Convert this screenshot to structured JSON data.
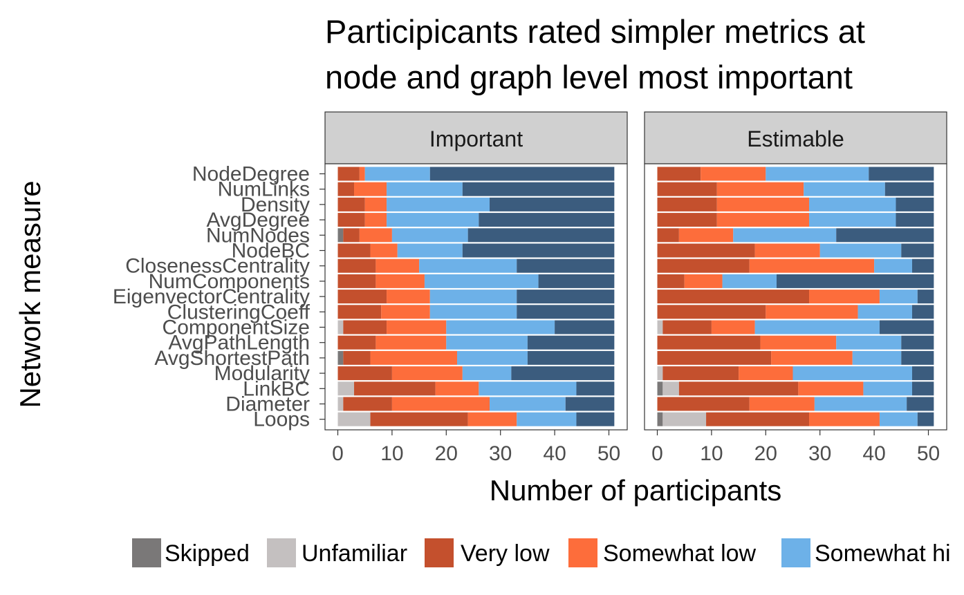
{
  "chart_data": {
    "type": "bar",
    "orientation": "horizontal",
    "stacked": true,
    "title": [
      "Participicants rated simpler metrics at",
      "node and graph level most important"
    ],
    "xlabel": "Number of participants",
    "ylabel": "Network measure",
    "xlim": [
      0,
      51
    ],
    "xticks": [
      0,
      10,
      20,
      30,
      40,
      50
    ],
    "grid": false,
    "legend_position": "bottom",
    "facets": [
      "Important",
      "Estimable"
    ],
    "categories": [
      "NodeDegree",
      "NumLinks",
      "Density",
      "AvgDegree",
      "NumNodes",
      "NodeBC",
      "ClosenessCentrality",
      "NumComponents",
      "EigenvectorCentrality",
      "ClusteringCoeff",
      "ComponentSize",
      "AvgPathLength",
      "AvgShortestPath",
      "Modularity",
      "LinkBC",
      "Diameter",
      "Loops"
    ],
    "series": [
      {
        "name": "Skipped",
        "color": "#7a7878"
      },
      {
        "name": "Unfamiliar",
        "color": "#c4c0c0"
      },
      {
        "name": "Very low",
        "color": "#c4502d"
      },
      {
        "name": "Somewhat low",
        "color": "#fd6d3b"
      },
      {
        "name": "Somewhat hi",
        "color": "#6db1e8"
      },
      {
        "name": "",
        "color": "#3b5c7e"
      }
    ],
    "values": {
      "Important": [
        [
          0,
          0,
          4,
          1,
          12,
          34
        ],
        [
          0,
          0,
          3,
          6,
          14,
          28
        ],
        [
          0,
          0,
          5,
          4,
          19,
          23
        ],
        [
          0,
          0,
          5,
          4,
          17,
          25
        ],
        [
          1,
          0,
          3,
          6,
          14,
          27
        ],
        [
          0,
          0,
          6,
          5,
          12,
          28
        ],
        [
          0,
          0,
          7,
          8,
          18,
          18
        ],
        [
          0,
          0,
          7,
          9,
          21,
          14
        ],
        [
          0,
          0,
          9,
          8,
          16,
          18
        ],
        [
          0,
          0,
          8,
          9,
          16,
          18
        ],
        [
          0,
          1,
          8,
          11,
          20,
          11
        ],
        [
          0,
          0,
          7,
          13,
          15,
          16
        ],
        [
          1,
          0,
          5,
          16,
          13,
          16
        ],
        [
          0,
          0,
          10,
          13,
          9,
          19
        ],
        [
          0,
          3,
          15,
          8,
          18,
          7
        ],
        [
          0,
          1,
          9,
          18,
          14,
          9
        ],
        [
          0,
          6,
          18,
          9,
          11,
          7
        ]
      ],
      "Estimable": [
        [
          0,
          0,
          8,
          12,
          19,
          12
        ],
        [
          0,
          0,
          11,
          16,
          15,
          9
        ],
        [
          0,
          0,
          11,
          17,
          16,
          7
        ],
        [
          0,
          0,
          11,
          17,
          16,
          7
        ],
        [
          0,
          0,
          4,
          10,
          19,
          18
        ],
        [
          0,
          0,
          18,
          12,
          15,
          6
        ],
        [
          0,
          0,
          17,
          23,
          7,
          4
        ],
        [
          0,
          0,
          5,
          7,
          10,
          29
        ],
        [
          0,
          0,
          28,
          13,
          7,
          3
        ],
        [
          0,
          0,
          20,
          17,
          10,
          4
        ],
        [
          0,
          1,
          9,
          8,
          23,
          10
        ],
        [
          0,
          0,
          19,
          14,
          12,
          6
        ],
        [
          0,
          0,
          21,
          15,
          9,
          6
        ],
        [
          0,
          1,
          14,
          10,
          22,
          4
        ],
        [
          1,
          3,
          22,
          12,
          9,
          4
        ],
        [
          0,
          0,
          17,
          12,
          17,
          5
        ],
        [
          1,
          8,
          19,
          13,
          7,
          3
        ]
      ]
    }
  }
}
